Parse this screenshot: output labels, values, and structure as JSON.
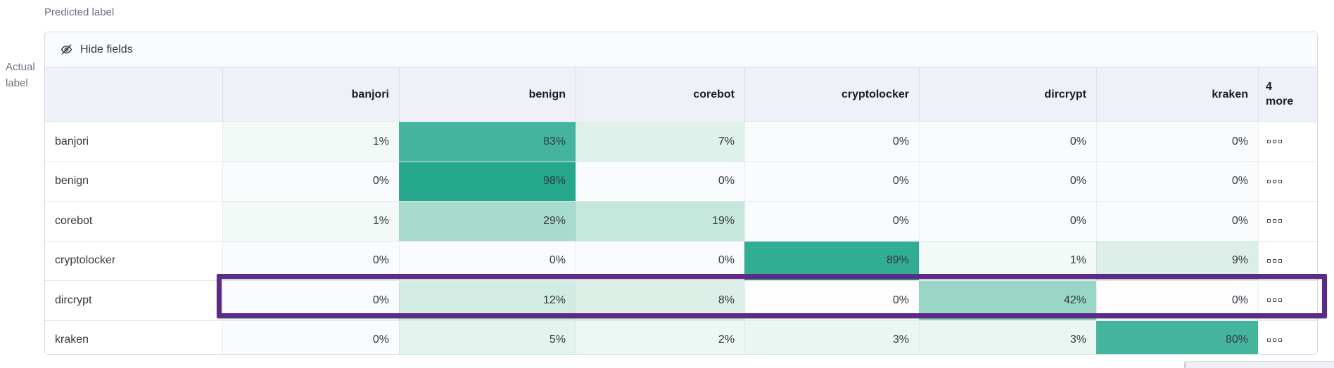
{
  "labels": {
    "predicted": "Predicted label",
    "actual": [
      "Actual",
      "label"
    ]
  },
  "toolbar": {
    "hide_fields": "Hide fields"
  },
  "table": {
    "columns": [
      "banjori",
      "benign",
      "corebot",
      "cryptolocker",
      "dircrypt",
      "kraken"
    ],
    "more_header": [
      "4",
      "more"
    ],
    "rows": [
      {
        "label": "banjori",
        "highlighted": false,
        "cells": [
          {
            "v": "1%",
            "c": "#f3f9f6"
          },
          {
            "v": "83%",
            "c": "#44b49c"
          },
          {
            "v": "7%",
            "c": "#def1ea"
          },
          {
            "v": "0%",
            "c": "#fafbfd"
          },
          {
            "v": "0%",
            "c": "#fafbfd"
          },
          {
            "v": "0%",
            "c": "#fafbfd"
          }
        ]
      },
      {
        "label": "benign",
        "highlighted": false,
        "cells": [
          {
            "v": "0%",
            "c": "#fafbfd"
          },
          {
            "v": "98%",
            "c": "#26a88d"
          },
          {
            "v": "0%",
            "c": "#fafbfd"
          },
          {
            "v": "0%",
            "c": "#fafbfd"
          },
          {
            "v": "0%",
            "c": "#fafbfd"
          },
          {
            "v": "0%",
            "c": "#fafbfd"
          }
        ]
      },
      {
        "label": "corebot",
        "highlighted": false,
        "cells": [
          {
            "v": "1%",
            "c": "#f3f9f6"
          },
          {
            "v": "29%",
            "c": "#a7dccc"
          },
          {
            "v": "19%",
            "c": "#c6e7dc"
          },
          {
            "v": "0%",
            "c": "#fafbfd"
          },
          {
            "v": "0%",
            "c": "#fafbfd"
          },
          {
            "v": "0%",
            "c": "#fafbfd"
          }
        ]
      },
      {
        "label": "cryptolocker",
        "highlighted": false,
        "cells": [
          {
            "v": "0%",
            "c": "#fafbfd"
          },
          {
            "v": "0%",
            "c": "#fafbfd"
          },
          {
            "v": "0%",
            "c": "#fafbfd"
          },
          {
            "v": "89%",
            "c": "#30ad92"
          },
          {
            "v": "1%",
            "c": "#f3f9f6"
          },
          {
            "v": "9%",
            "c": "#dbefe8"
          }
        ]
      },
      {
        "label": "dircrypt",
        "highlighted": true,
        "cells": [
          {
            "v": "0%",
            "c": "#fafbfd"
          },
          {
            "v": "12%",
            "c": "#d3ece3"
          },
          {
            "v": "8%",
            "c": "#dcf0e8"
          },
          {
            "v": "0%",
            "c": "#fdfdfe"
          },
          {
            "v": "42%",
            "c": "#99d6c5"
          },
          {
            "v": "0%",
            "c": "#fdfdfe"
          }
        ]
      },
      {
        "label": "kraken",
        "highlighted": false,
        "cells": [
          {
            "v": "0%",
            "c": "#fafbfd"
          },
          {
            "v": "5%",
            "c": "#e3f3ed"
          },
          {
            "v": "2%",
            "c": "#edf7f3"
          },
          {
            "v": "3%",
            "c": "#eaf6f1"
          },
          {
            "v": "3%",
            "c": "#eaf6f1"
          },
          {
            "v": "80%",
            "c": "#44b59c"
          }
        ]
      }
    ]
  },
  "icons": {
    "toolbar_icon": "eye-closed-icon",
    "row_actions_icon": "boxes-horizontal-icon"
  },
  "colors": {
    "heatmap_base": "#54b399",
    "highlight_border": "#5c2b87",
    "panel_border": "#d3dae6",
    "header_bg": "#eef1f7",
    "toolbar_bg": "#fafbfd",
    "zero_cell_bg": "#fafbfd",
    "text": "#343741",
    "muted_text": "#69707d"
  },
  "chart_data": {
    "type": "heatmap",
    "title": "Confusion matrix (normalized, %)",
    "xlabel": "Predicted label",
    "ylabel": "Actual label",
    "x_categories": [
      "banjori",
      "benign",
      "corebot",
      "cryptolocker",
      "dircrypt",
      "kraken"
    ],
    "y_categories": [
      "banjori",
      "benign",
      "corebot",
      "cryptolocker",
      "dircrypt",
      "kraken"
    ],
    "hidden_columns_note": "4 more",
    "values_percent": [
      [
        1,
        83,
        7,
        0,
        0,
        0
      ],
      [
        0,
        98,
        0,
        0,
        0,
        0
      ],
      [
        1,
        29,
        19,
        0,
        0,
        0
      ],
      [
        0,
        0,
        0,
        89,
        1,
        9
      ],
      [
        0,
        12,
        8,
        0,
        42,
        0
      ],
      [
        0,
        5,
        2,
        3,
        3,
        80
      ]
    ],
    "highlighted_row": "dircrypt",
    "color_range": [
      "#ffffff",
      "#54b399"
    ]
  }
}
